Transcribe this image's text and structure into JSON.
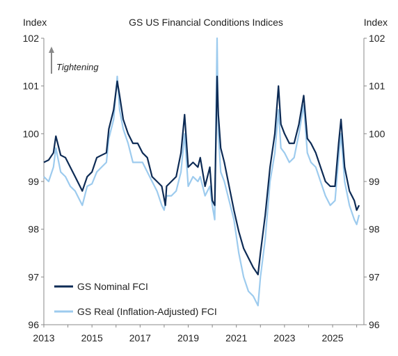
{
  "chart_data": {
    "type": "line",
    "title": "GS US Financial Conditions Indices",
    "left_axis_unit": "Index",
    "right_axis_unit": "Index",
    "ylim": [
      96,
      102
    ],
    "y_ticks": [
      96,
      97,
      98,
      99,
      100,
      101,
      102
    ],
    "xlim": [
      2013.0,
      2026.3
    ],
    "x_ticks": [
      2013,
      2015,
      2017,
      2019,
      2021,
      2023,
      2025
    ],
    "x_tick_labels": [
      "2013",
      "2015",
      "2017",
      "2019",
      "2021",
      "2023",
      "2025"
    ],
    "grid": false,
    "legend_position": "bottom-left",
    "annotation": "Tightening",
    "colors": {
      "nominal": "#0d2b55",
      "real": "#9dcbee"
    },
    "series": [
      {
        "name": "GS Nominal FCI",
        "x": [
          2013.0,
          2013.2,
          2013.4,
          2013.5,
          2013.7,
          2013.9,
          2014.1,
          2014.3,
          2014.5,
          2014.6,
          2014.8,
          2015.0,
          2015.2,
          2015.4,
          2015.6,
          2015.7,
          2015.9,
          2016.05,
          2016.15,
          2016.3,
          2016.5,
          2016.7,
          2016.9,
          2017.1,
          2017.3,
          2017.5,
          2017.7,
          2017.9,
          2018.05,
          2018.1,
          2018.3,
          2018.5,
          2018.7,
          2018.85,
          2019.0,
          2019.2,
          2019.4,
          2019.5,
          2019.7,
          2019.9,
          2020.0,
          2020.1,
          2020.2,
          2020.25,
          2020.35,
          2020.5,
          2020.7,
          2020.9,
          2021.1,
          2021.3,
          2021.5,
          2021.7,
          2021.9,
          2022.0,
          2022.2,
          2022.4,
          2022.6,
          2022.75,
          2022.85,
          2023.0,
          2023.2,
          2023.4,
          2023.6,
          2023.8,
          2023.95,
          2024.1,
          2024.3,
          2024.5,
          2024.7,
          2024.9,
          2025.1,
          2025.25,
          2025.35,
          2025.5,
          2025.7,
          2025.9,
          2026.0,
          2026.1
        ],
        "values": [
          99.4,
          99.45,
          99.6,
          99.95,
          99.55,
          99.5,
          99.3,
          99.1,
          98.9,
          98.8,
          99.1,
          99.2,
          99.5,
          99.55,
          99.6,
          100.1,
          100.5,
          101.1,
          100.8,
          100.3,
          100.0,
          99.8,
          99.8,
          99.6,
          99.5,
          99.1,
          99.0,
          98.9,
          98.5,
          98.9,
          99.0,
          99.1,
          99.6,
          100.4,
          99.3,
          99.4,
          99.3,
          99.5,
          98.9,
          99.3,
          98.6,
          98.5,
          101.2,
          100.4,
          99.7,
          99.4,
          98.9,
          98.4,
          97.95,
          97.6,
          97.4,
          97.2,
          97.05,
          97.5,
          98.3,
          99.3,
          100.0,
          101.0,
          100.2,
          100.0,
          99.8,
          99.8,
          100.2,
          100.8,
          99.9,
          99.8,
          99.6,
          99.3,
          99.0,
          98.9,
          98.9,
          99.8,
          100.3,
          99.3,
          98.8,
          98.6,
          98.4,
          98.5
        ]
      },
      {
        "name": "GS Real (Inflation-Adjusted) FCI",
        "x": [
          2013.0,
          2013.2,
          2013.4,
          2013.5,
          2013.7,
          2013.9,
          2014.1,
          2014.3,
          2014.5,
          2014.6,
          2014.8,
          2015.0,
          2015.2,
          2015.4,
          2015.6,
          2015.7,
          2015.9,
          2016.05,
          2016.15,
          2016.3,
          2016.5,
          2016.7,
          2016.9,
          2017.1,
          2017.3,
          2017.5,
          2017.7,
          2017.9,
          2018.0,
          2018.1,
          2018.3,
          2018.5,
          2018.7,
          2018.85,
          2019.0,
          2019.2,
          2019.4,
          2019.5,
          2019.7,
          2019.9,
          2020.0,
          2020.1,
          2020.2,
          2020.25,
          2020.35,
          2020.5,
          2020.7,
          2020.9,
          2021.1,
          2021.3,
          2021.5,
          2021.7,
          2021.9,
          2022.0,
          2022.2,
          2022.4,
          2022.6,
          2022.75,
          2022.85,
          2023.0,
          2023.2,
          2023.4,
          2023.6,
          2023.8,
          2023.95,
          2024.1,
          2024.3,
          2024.5,
          2024.7,
          2024.9,
          2025.1,
          2025.25,
          2025.35,
          2025.5,
          2025.7,
          2025.9,
          2026.0,
          2026.1
        ],
        "values": [
          99.1,
          99.0,
          99.3,
          99.7,
          99.2,
          99.1,
          98.9,
          98.8,
          98.6,
          98.5,
          98.9,
          98.95,
          99.2,
          99.3,
          99.4,
          99.9,
          100.3,
          101.2,
          100.5,
          100.1,
          99.8,
          99.4,
          99.4,
          99.4,
          99.2,
          99.0,
          98.8,
          98.5,
          98.4,
          98.7,
          98.7,
          98.8,
          99.2,
          100.0,
          98.9,
          99.1,
          99.0,
          99.1,
          98.7,
          98.9,
          98.5,
          98.2,
          102.0,
          100.0,
          99.2,
          99.0,
          98.6,
          98.2,
          97.5,
          97.0,
          96.7,
          96.6,
          96.4,
          97.0,
          97.8,
          99.0,
          99.6,
          100.5,
          99.7,
          99.6,
          99.4,
          99.5,
          100.0,
          100.6,
          99.6,
          99.4,
          99.3,
          99.0,
          98.7,
          98.5,
          98.6,
          99.5,
          100.0,
          99.0,
          98.5,
          98.2,
          98.1,
          98.3
        ]
      }
    ]
  }
}
